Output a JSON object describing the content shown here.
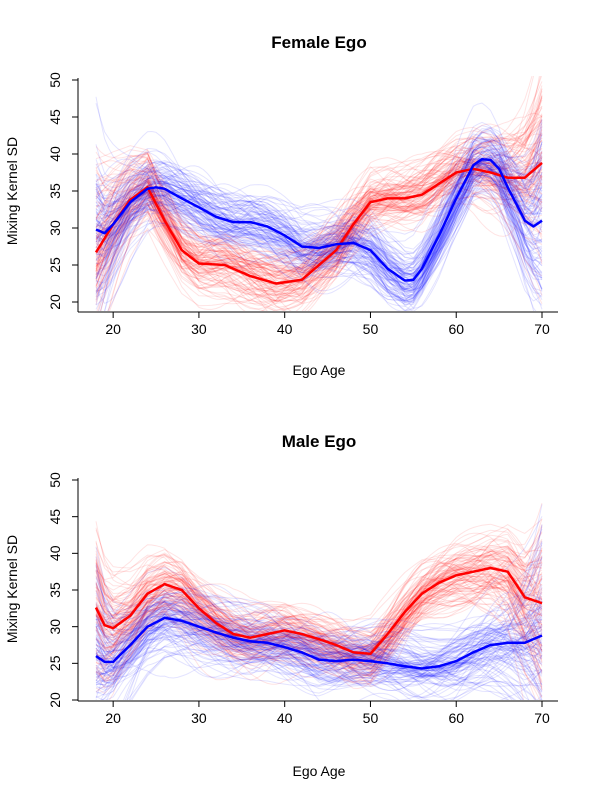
{
  "chart_data": [
    {
      "type": "line",
      "title": "Female Ego",
      "xlabel": "Ego Age",
      "ylabel": "Mixing Kernel SD",
      "xlim": [
        18,
        70
      ],
      "ylim": [
        19,
        51
      ],
      "xticks": [
        20,
        30,
        40,
        50,
        60,
        70
      ],
      "yticks": [
        20,
        25,
        30,
        35,
        40,
        45,
        50
      ],
      "grid": false,
      "colors": {
        "female": "#ff0000",
        "male": "#0000ff"
      },
      "series": [
        {
          "color": "#ff0000",
          "x": [
            18,
            20,
            22,
            24,
            26,
            28,
            30,
            33,
            36,
            39,
            42,
            44,
            46,
            48,
            50,
            52,
            54,
            56,
            58,
            60,
            62,
            64,
            66,
            68,
            70
          ],
          "values": [
            26.7,
            30.5,
            33.8,
            35.5,
            31,
            27,
            25.2,
            25,
            23.5,
            22.5,
            23,
            25,
            27,
            30.5,
            33.5,
            34,
            34,
            34.5,
            36,
            37.5,
            38,
            37.5,
            36.8,
            36.8,
            38.8
          ]
        },
        {
          "color": "#0000ff",
          "x": [
            18,
            19,
            20,
            22,
            24,
            25,
            26,
            28,
            30,
            32,
            34,
            36,
            38,
            40,
            42,
            44,
            46,
            48,
            50,
            52,
            54,
            55,
            56,
            58,
            60,
            62,
            63,
            64,
            65,
            66,
            68,
            69,
            70
          ],
          "values": [
            29.8,
            29.3,
            30.5,
            33.5,
            35.3,
            35.5,
            35.3,
            34,
            32.8,
            31.5,
            30.8,
            30.8,
            30.2,
            29,
            27.5,
            27.3,
            27.8,
            28,
            27,
            24.5,
            22.9,
            23,
            24.5,
            29,
            34,
            38.5,
            39.3,
            39.2,
            38,
            35.5,
            31,
            30.2,
            31
          ]
        }
      ]
    },
    {
      "type": "line",
      "title": "Male Ego",
      "xlabel": "Ego Age",
      "ylabel": "Mixing Kernel SD",
      "xlim": [
        18,
        70
      ],
      "ylim": [
        19,
        51
      ],
      "xticks": [
        20,
        30,
        40,
        50,
        60,
        70
      ],
      "yticks": [
        20,
        25,
        30,
        35,
        40,
        45,
        50
      ],
      "grid": false,
      "colors": {
        "female": "#ff0000",
        "male": "#0000ff"
      },
      "series": [
        {
          "color": "#ff0000",
          "x": [
            18,
            19,
            20,
            22,
            24,
            26,
            28,
            30,
            32,
            34,
            36,
            38,
            40,
            42,
            44,
            46,
            48,
            50,
            52,
            54,
            56,
            58,
            60,
            62,
            64,
            66,
            68,
            70
          ],
          "values": [
            32.6,
            30.2,
            29.8,
            31.5,
            34.5,
            35.8,
            35,
            32.5,
            30.5,
            29,
            28.5,
            29,
            29.5,
            29,
            28.3,
            27.5,
            26.5,
            26.3,
            29,
            32,
            34.5,
            36,
            37,
            37.5,
            38,
            37.5,
            34,
            33.2
          ]
        },
        {
          "color": "#0000ff",
          "x": [
            18,
            19,
            20,
            22,
            24,
            26,
            28,
            30,
            32,
            34,
            36,
            38,
            40,
            42,
            44,
            46,
            48,
            50,
            52,
            54,
            56,
            58,
            60,
            62,
            64,
            66,
            68,
            70
          ],
          "values": [
            26,
            25.2,
            25.2,
            27.5,
            30,
            31.2,
            30.8,
            30,
            29.2,
            28.5,
            28,
            27.8,
            27.2,
            26.5,
            25.5,
            25.3,
            25.5,
            25.3,
            25,
            24.6,
            24.3,
            24.6,
            25.3,
            26.5,
            27.5,
            27.8,
            27.8,
            28.8
          ]
        }
      ]
    }
  ]
}
